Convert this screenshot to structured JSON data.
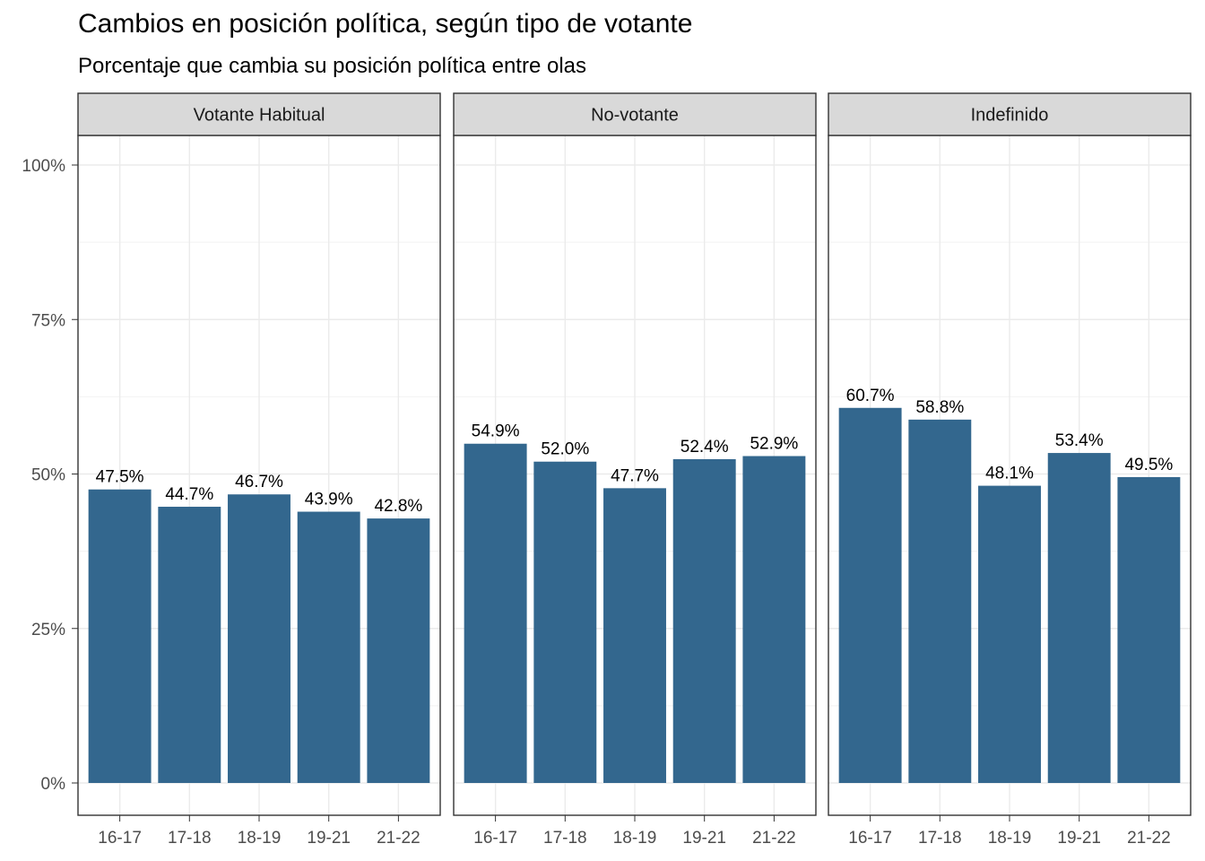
{
  "chart_data": {
    "type": "bar",
    "title": "Cambios en posición política, según tipo de votante",
    "subtitle": "Porcentaje que cambia su posición política entre olas",
    "xlabel": "",
    "ylabel": "",
    "ylim": [
      0,
      100
    ],
    "y_ticks": [
      "0%",
      "25%",
      "50%",
      "75%",
      "100%"
    ],
    "y_tick_values": [
      0,
      25,
      50,
      75,
      100
    ],
    "categories": [
      "16-17",
      "17-18",
      "18-19",
      "19-21",
      "21-22"
    ],
    "bar_color": "#33678E",
    "grid": true,
    "facets": [
      {
        "name": "Votante Habitual",
        "values": [
          47.5,
          44.7,
          46.7,
          43.9,
          42.8
        ],
        "labels": [
          "47.5%",
          "44.7%",
          "46.7%",
          "43.9%",
          "42.8%"
        ]
      },
      {
        "name": "No-votante",
        "values": [
          54.9,
          52.0,
          47.7,
          52.4,
          52.9
        ],
        "labels": [
          "54.9%",
          "52.0%",
          "47.7%",
          "52.4%",
          "52.9%"
        ]
      },
      {
        "name": "Indefinido",
        "values": [
          60.7,
          58.8,
          48.1,
          53.4,
          49.5
        ],
        "labels": [
          "60.7%",
          "58.8%",
          "48.1%",
          "53.4%",
          "49.5%"
        ]
      }
    ]
  }
}
